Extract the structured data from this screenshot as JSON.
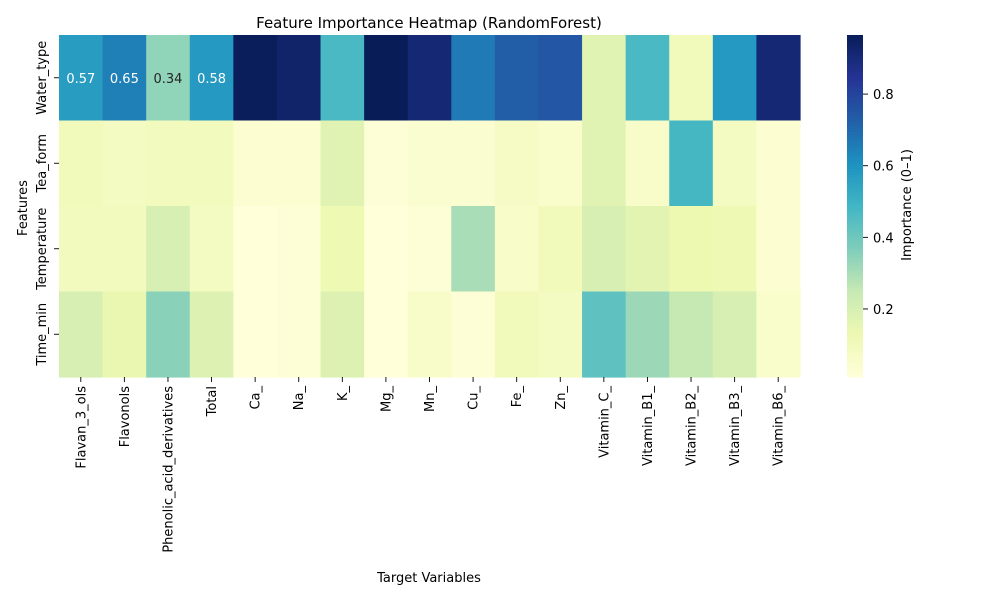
{
  "chart_data": {
    "type": "heatmap",
    "title": "Feature Importance Heatmap (RandomForest)",
    "xlabel": "Target Variables",
    "ylabel": "Features",
    "colorbar_label": "Importance (0–1)",
    "colormap": "YlGnBu",
    "value_range": [
      0.01,
      0.965
    ],
    "colorbar_ticks": [
      0.2,
      0.4,
      0.6,
      0.8
    ],
    "columns": [
      "Flavan_3_ols",
      "Flavonols",
      "Phenolic_acid_derivatives",
      "Total",
      "Ca_",
      "Na_",
      "K_",
      "Mg_",
      "Mn_",
      "Cu_",
      "Fe_",
      "Zn_",
      "Vitamin_C_",
      "Vitamin_B1_",
      "Vitamin_B2_",
      "Vitamin_B3_",
      "Vitamin_B6_"
    ],
    "rows": [
      "Water_type",
      "Tea_form",
      "Temperature",
      "Time_min"
    ],
    "values": [
      [
        0.57,
        0.65,
        0.34,
        0.58,
        0.96,
        0.93,
        0.47,
        0.97,
        0.91,
        0.66,
        0.73,
        0.75,
        0.17,
        0.47,
        0.1,
        0.58,
        0.91
      ],
      [
        0.1,
        0.08,
        0.09,
        0.09,
        0.03,
        0.03,
        0.17,
        0.02,
        0.04,
        0.04,
        0.07,
        0.05,
        0.17,
        0.06,
        0.48,
        0.08,
        0.03
      ],
      [
        0.09,
        0.09,
        0.2,
        0.08,
        0.01,
        0.02,
        0.12,
        0.01,
        0.02,
        0.3,
        0.06,
        0.1,
        0.2,
        0.16,
        0.13,
        0.12,
        0.03
      ],
      [
        0.2,
        0.14,
        0.35,
        0.18,
        0.01,
        0.02,
        0.18,
        0.01,
        0.06,
        0.02,
        0.1,
        0.08,
        0.43,
        0.32,
        0.25,
        0.2,
        0.05
      ]
    ],
    "annotations": [
      {
        "row": 0,
        "col": 0,
        "text": "0.57"
      },
      {
        "row": 0,
        "col": 1,
        "text": "0.65"
      },
      {
        "row": 0,
        "col": 2,
        "text": "0.34"
      },
      {
        "row": 0,
        "col": 3,
        "text": "0.58"
      }
    ]
  }
}
